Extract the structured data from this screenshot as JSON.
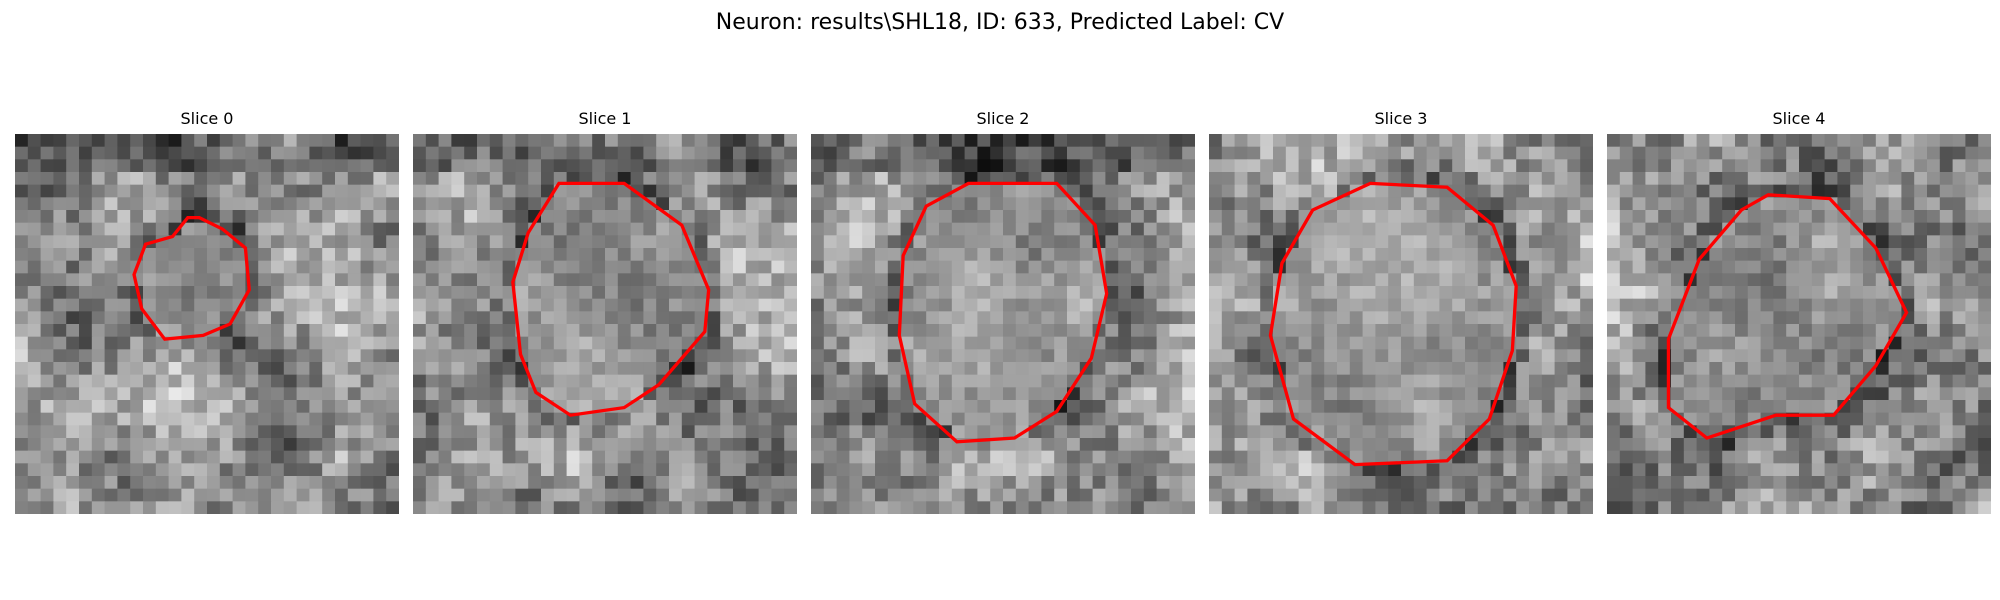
{
  "figure": {
    "suptitle": "Neuron: results\\SHL18, ID: 633, Predicted Label: CV",
    "contour_color": "#ff0000",
    "panels": [
      {
        "title": "Slice 0",
        "seed": 11,
        "outline": [
          [
            0.41,
            0.27
          ],
          [
            0.45,
            0.22
          ],
          [
            0.48,
            0.22
          ],
          [
            0.54,
            0.25
          ],
          [
            0.6,
            0.3
          ],
          [
            0.61,
            0.41
          ],
          [
            0.56,
            0.5
          ],
          [
            0.49,
            0.53
          ],
          [
            0.39,
            0.54
          ],
          [
            0.33,
            0.46
          ],
          [
            0.31,
            0.37
          ],
          [
            0.34,
            0.29
          ]
        ]
      },
      {
        "title": "Slice 1",
        "seed": 23,
        "outline": [
          [
            0.38,
            0.13
          ],
          [
            0.55,
            0.13
          ],
          [
            0.7,
            0.24
          ],
          [
            0.77,
            0.41
          ],
          [
            0.76,
            0.52
          ],
          [
            0.64,
            0.66
          ],
          [
            0.55,
            0.72
          ],
          [
            0.41,
            0.74
          ],
          [
            0.32,
            0.68
          ],
          [
            0.28,
            0.58
          ],
          [
            0.26,
            0.39
          ],
          [
            0.3,
            0.26
          ]
        ]
      },
      {
        "title": "Slice 2",
        "seed": 37,
        "outline": [
          [
            0.41,
            0.13
          ],
          [
            0.64,
            0.13
          ],
          [
            0.74,
            0.24
          ],
          [
            0.77,
            0.42
          ],
          [
            0.73,
            0.59
          ],
          [
            0.64,
            0.73
          ],
          [
            0.53,
            0.8
          ],
          [
            0.38,
            0.81
          ],
          [
            0.27,
            0.71
          ],
          [
            0.23,
            0.53
          ],
          [
            0.24,
            0.32
          ],
          [
            0.3,
            0.19
          ]
        ]
      },
      {
        "title": "Slice 3",
        "seed": 51,
        "outline": [
          [
            0.42,
            0.13
          ],
          [
            0.62,
            0.14
          ],
          [
            0.74,
            0.24
          ],
          [
            0.8,
            0.4
          ],
          [
            0.79,
            0.57
          ],
          [
            0.73,
            0.75
          ],
          [
            0.62,
            0.86
          ],
          [
            0.38,
            0.87
          ],
          [
            0.22,
            0.75
          ],
          [
            0.16,
            0.53
          ],
          [
            0.19,
            0.34
          ],
          [
            0.27,
            0.2
          ]
        ]
      },
      {
        "title": "Slice 4",
        "seed": 67,
        "outline": [
          [
            0.42,
            0.16
          ],
          [
            0.58,
            0.17
          ],
          [
            0.7,
            0.3
          ],
          [
            0.78,
            0.47
          ],
          [
            0.7,
            0.61
          ],
          [
            0.59,
            0.74
          ],
          [
            0.44,
            0.74
          ],
          [
            0.26,
            0.8
          ],
          [
            0.16,
            0.72
          ],
          [
            0.16,
            0.54
          ],
          [
            0.24,
            0.33
          ],
          [
            0.35,
            0.2
          ]
        ]
      }
    ]
  }
}
